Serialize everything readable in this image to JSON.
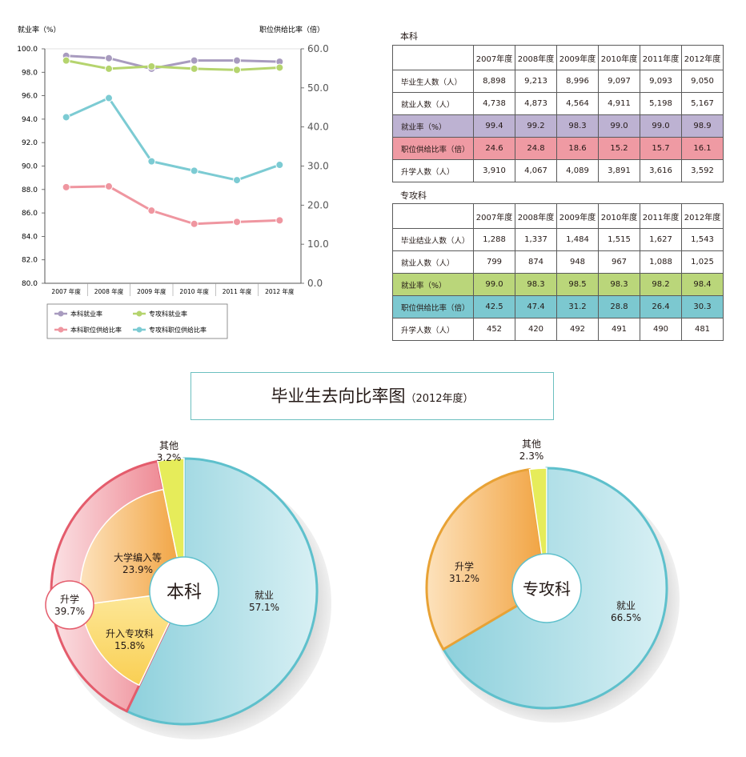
{
  "line_chart": {
    "left_axis_label": "就业率（%）",
    "right_axis_label": "职位供给比率（倍）",
    "left_ticks": [
      "100.0",
      "98.0",
      "96.0",
      "94.0",
      "92.0",
      "90.0",
      "88.0",
      "86.0",
      "84.0",
      "82.0",
      "80.0"
    ],
    "right_ticks": [
      "60.0",
      "50.0",
      "40.0",
      "30.0",
      "20.0",
      "10.0",
      "0.0"
    ],
    "legend": [
      "本科就业率",
      "专攻科就业率",
      "本科职位供给比率",
      "专攻科职位供给比率"
    ]
  },
  "table_benke": {
    "title": "本科",
    "years": [
      "2007年度",
      "2008年度",
      "2009年度",
      "2010年度",
      "2011年度",
      "2012年度"
    ],
    "rows": [
      {
        "label": "毕业生人数（人）",
        "values": [
          "8,898",
          "9,213",
          "8,996",
          "9,097",
          "9,093",
          "9,050"
        ]
      },
      {
        "label": "就业人数（人）",
        "values": [
          "4,738",
          "4,873",
          "4,564",
          "4,911",
          "5,198",
          "5,167"
        ]
      },
      {
        "label": "就业率（%）",
        "values": [
          "99.4",
          "99.2",
          "98.3",
          "99.0",
          "99.0",
          "98.9"
        ]
      },
      {
        "label": "职位供给比率（倍）",
        "values": [
          "24.6",
          "24.8",
          "18.6",
          "15.2",
          "15.7",
          "16.1"
        ]
      },
      {
        "label": "升学人数（人）",
        "values": [
          "3,910",
          "4,067",
          "4,089",
          "3,891",
          "3,616",
          "3,592"
        ]
      }
    ]
  },
  "table_zhuangong": {
    "title": "专攻科",
    "years": [
      "2007年度",
      "2008年度",
      "2009年度",
      "2010年度",
      "2011年度",
      "2012年度"
    ],
    "rows": [
      {
        "label": "毕业结业人数（人）",
        "values": [
          "1,288",
          "1,337",
          "1,484",
          "1,515",
          "1,627",
          "1,543"
        ]
      },
      {
        "label": "就业人数（人）",
        "values": [
          "799",
          "874",
          "948",
          "967",
          "1,088",
          "1,025"
        ]
      },
      {
        "label": "就业率（%）",
        "values": [
          "99.0",
          "98.3",
          "98.5",
          "98.3",
          "98.2",
          "98.4"
        ]
      },
      {
        "label": "职位供给比率（倍）",
        "values": [
          "42.5",
          "47.4",
          "31.2",
          "28.8",
          "26.4",
          "30.3"
        ]
      },
      {
        "label": "升学人数（人）",
        "values": [
          "452",
          "420",
          "492",
          "491",
          "490",
          "481"
        ]
      }
    ]
  },
  "banner": {
    "title": "毕业生去向比率图",
    "subtitle": "（2012年度）"
  },
  "chart_data": [
    {
      "type": "line",
      "x": [
        "2007 年度",
        "2008 年度",
        "2009 年度",
        "2010 年度",
        "2011 年度",
        "2012 年度"
      ],
      "ylim": [
        80,
        100
      ],
      "y2lim": [
        0,
        60
      ],
      "ylabel": "就业率（%）",
      "y2label": "职位供给比率（倍）",
      "legend_position": "bottom",
      "series": [
        {
          "name": "本科就业率",
          "axis": "left",
          "color": "#a89bbf",
          "values": [
            99.4,
            99.2,
            98.3,
            99.0,
            99.0,
            98.9
          ]
        },
        {
          "name": "专攻科就业率",
          "axis": "left",
          "color": "#b5d46e",
          "values": [
            99.0,
            98.3,
            98.5,
            98.3,
            98.2,
            98.4
          ]
        },
        {
          "name": "本科职位供给比率",
          "axis": "right",
          "color": "#ef96a0",
          "values": [
            24.6,
            24.8,
            18.6,
            15.2,
            15.7,
            16.1
          ]
        },
        {
          "name": "专攻科职位供给比率",
          "axis": "right",
          "color": "#7ccbd3",
          "values": [
            42.5,
            47.4,
            31.2,
            28.8,
            26.4,
            30.3
          ]
        }
      ]
    },
    {
      "type": "pie",
      "center_label": "本科",
      "slices": [
        {
          "label": "就业",
          "value": 57.1,
          "display": "57.1%",
          "color": "#8dd0dc"
        },
        {
          "label": "升学",
          "value": 39.7,
          "display": "39.7%",
          "color": "#f3a3ab",
          "sub": [
            {
              "label": "升入专攻科",
              "value": 15.8,
              "display": "15.8%",
              "color": "#fbd777"
            },
            {
              "label": "大学编入等",
              "value": 23.9,
              "display": "23.9%",
              "color": "#f5b25a"
            }
          ]
        },
        {
          "label": "其他",
          "value": 3.2,
          "display": "3.2%",
          "color": "#e6ec5a"
        }
      ]
    },
    {
      "type": "pie",
      "center_label": "专攻科",
      "slices": [
        {
          "label": "就业",
          "value": 66.5,
          "display": "66.5%",
          "color": "#8dd0dc"
        },
        {
          "label": "升学",
          "value": 31.2,
          "display": "31.2%",
          "color": "#f5b25a"
        },
        {
          "label": "其他",
          "value": 2.3,
          "display": "2.3%",
          "color": "#e6ec5a"
        }
      ]
    }
  ]
}
